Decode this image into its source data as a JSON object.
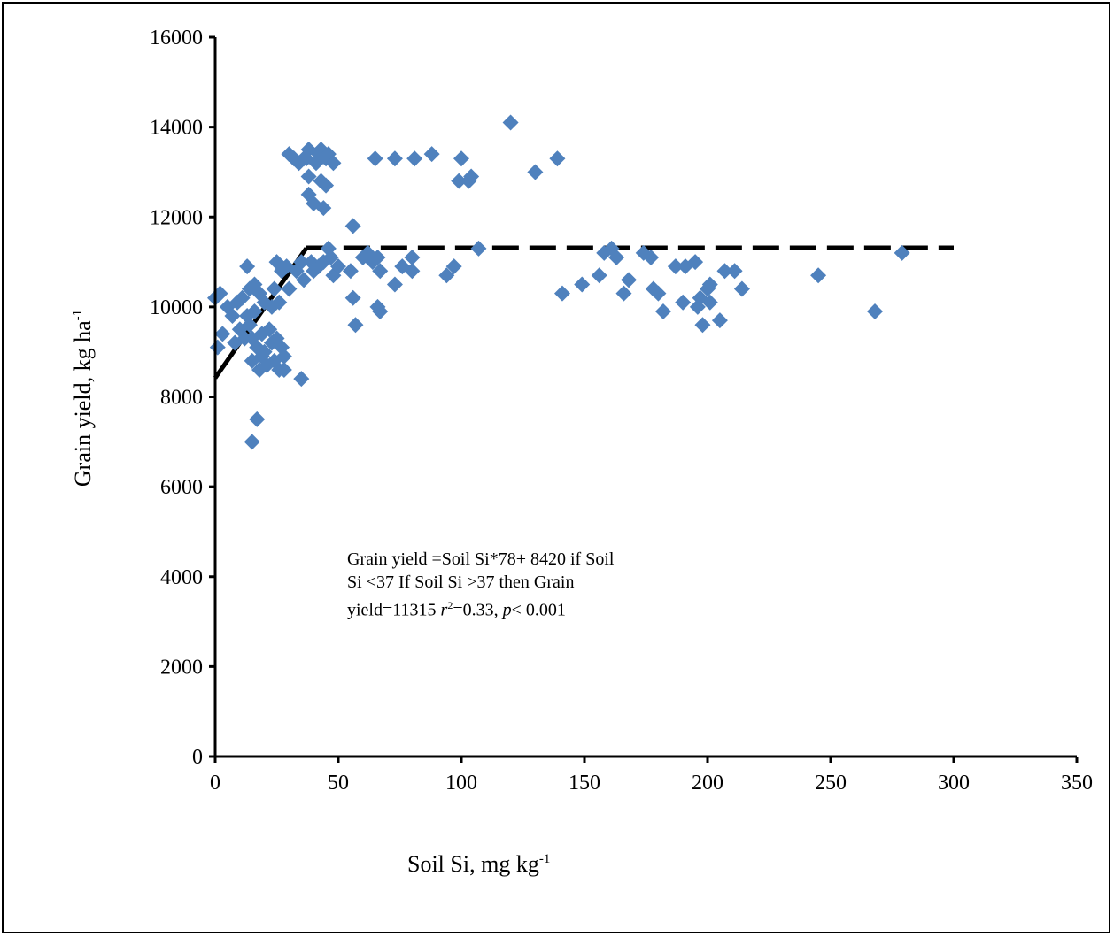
{
  "chart_data": {
    "type": "scatter",
    "title": "",
    "xlabel": "Soil Si, mg kg",
    "xlabel_sup": "-1",
    "ylabel": "Grain yield, kg ha",
    "ylabel_sup": "-1",
    "xlim": [
      0,
      350
    ],
    "ylim": [
      0,
      16000
    ],
    "xticks": [
      "0",
      "50",
      "100",
      "150",
      "200",
      "250",
      "300",
      "350"
    ],
    "yticks": [
      "0",
      "2000",
      "4000",
      "6000",
      "8000",
      "10000",
      "12000",
      "14000",
      "16000"
    ],
    "marker_color": "#4f81bd",
    "marker_shape": "diamond",
    "fit": {
      "segments": [
        {
          "style": "solid",
          "x": [
            0,
            37
          ],
          "y": [
            8420,
            11306
          ]
        },
        {
          "style": "dashed",
          "x": [
            37,
            300
          ],
          "y": [
            11315,
            11315
          ]
        }
      ],
      "color": "#000000"
    },
    "annotation": {
      "line1": "Grain yield =Soil Si*78+ 8420 if Soil",
      "line2": "Si <37 If Soil Si >37 then Grain",
      "line3_a": "yield=11315 ",
      "line3_r": "r",
      "line3_sup": "2",
      "line3_b": "=0.33, ",
      "line3_p": "p",
      "line3_c": "< 0.001"
    },
    "points": [
      [
        0,
        10200
      ],
      [
        2,
        10300
      ],
      [
        1,
        9100
      ],
      [
        3,
        9400
      ],
      [
        5,
        10000
      ],
      [
        7,
        9800
      ],
      [
        8,
        9200
      ],
      [
        9,
        10100
      ],
      [
        10,
        9500
      ],
      [
        11,
        10200
      ],
      [
        12,
        9300
      ],
      [
        13,
        10900
      ],
      [
        13,
        9800
      ],
      [
        14,
        10400
      ],
      [
        14,
        9600
      ],
      [
        15,
        9300
      ],
      [
        15,
        8800
      ],
      [
        15,
        7000
      ],
      [
        16,
        10500
      ],
      [
        16,
        9900
      ],
      [
        17,
        9100
      ],
      [
        17,
        7500
      ],
      [
        18,
        8600
      ],
      [
        18,
        10300
      ],
      [
        19,
        9400
      ],
      [
        19,
        8900
      ],
      [
        20,
        10100
      ],
      [
        20,
        9000
      ],
      [
        21,
        8700
      ],
      [
        22,
        9500
      ],
      [
        23,
        9200
      ],
      [
        23,
        10000
      ],
      [
        24,
        8800
      ],
      [
        24,
        10400
      ],
      [
        25,
        11000
      ],
      [
        25,
        9300
      ],
      [
        26,
        10100
      ],
      [
        26,
        8600
      ],
      [
        27,
        10800
      ],
      [
        27,
        9100
      ],
      [
        28,
        8900
      ],
      [
        28,
        8600
      ],
      [
        29,
        10900
      ],
      [
        30,
        13400
      ],
      [
        30,
        10400
      ],
      [
        32,
        13300
      ],
      [
        33,
        10800
      ],
      [
        34,
        13200
      ],
      [
        35,
        11000
      ],
      [
        35,
        8400
      ],
      [
        36,
        10600
      ],
      [
        36,
        13300
      ],
      [
        37,
        13300
      ],
      [
        38,
        13500
      ],
      [
        38,
        12500
      ],
      [
        38,
        12900
      ],
      [
        39,
        11000
      ],
      [
        40,
        12300
      ],
      [
        40,
        10800
      ],
      [
        41,
        13200
      ],
      [
        42,
        13400
      ],
      [
        42,
        10900
      ],
      [
        43,
        13500
      ],
      [
        43,
        12800
      ],
      [
        44,
        12200
      ],
      [
        44,
        11000
      ],
      [
        45,
        13300
      ],
      [
        45,
        12700
      ],
      [
        46,
        13400
      ],
      [
        46,
        11300
      ],
      [
        47,
        11100
      ],
      [
        48,
        13200
      ],
      [
        48,
        10700
      ],
      [
        50,
        10900
      ],
      [
        55,
        10800
      ],
      [
        56,
        10200
      ],
      [
        56,
        11800
      ],
      [
        57,
        9600
      ],
      [
        60,
        11100
      ],
      [
        62,
        11200
      ],
      [
        64,
        11000
      ],
      [
        65,
        13300
      ],
      [
        66,
        11100
      ],
      [
        66,
        10000
      ],
      [
        67,
        10800
      ],
      [
        67,
        9900
      ],
      [
        73,
        10500
      ],
      [
        73,
        13300
      ],
      [
        76,
        10900
      ],
      [
        80,
        11100
      ],
      [
        80,
        10800
      ],
      [
        81,
        13300
      ],
      [
        88,
        13400
      ],
      [
        94,
        10700
      ],
      [
        97,
        10900
      ],
      [
        99,
        12800
      ],
      [
        100,
        13300
      ],
      [
        103,
        12800
      ],
      [
        104,
        12900
      ],
      [
        107,
        11300
      ],
      [
        120,
        14100
      ],
      [
        130,
        13000
      ],
      [
        139,
        13300
      ],
      [
        141,
        10300
      ],
      [
        149,
        10500
      ],
      [
        156,
        10700
      ],
      [
        158,
        11200
      ],
      [
        161,
        11300
      ],
      [
        163,
        11100
      ],
      [
        166,
        10300
      ],
      [
        168,
        10600
      ],
      [
        174,
        11200
      ],
      [
        177,
        11100
      ],
      [
        178,
        10400
      ],
      [
        180,
        10300
      ],
      [
        182,
        9900
      ],
      [
        187,
        10900
      ],
      [
        190,
        10100
      ],
      [
        191,
        10900
      ],
      [
        195,
        11000
      ],
      [
        196,
        10000
      ],
      [
        197,
        10200
      ],
      [
        198,
        9600
      ],
      [
        200,
        10400
      ],
      [
        201,
        10500
      ],
      [
        201,
        10100
      ],
      [
        205,
        9700
      ],
      [
        207,
        10800
      ],
      [
        211,
        10800
      ],
      [
        214,
        10400
      ],
      [
        245,
        10700
      ],
      [
        268,
        9900
      ],
      [
        279,
        11200
      ]
    ]
  }
}
